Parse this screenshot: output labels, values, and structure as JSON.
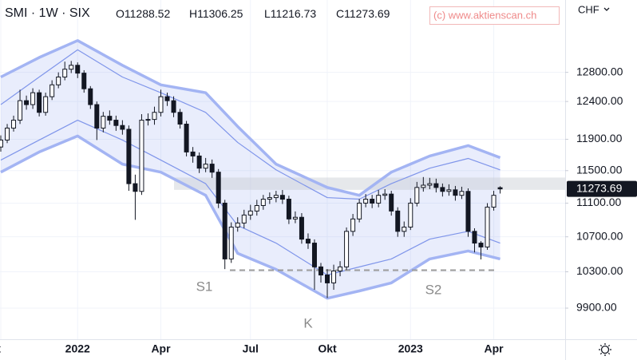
{
  "header": {
    "symbol": "SMI · 1W · SIX",
    "ohlc": [
      "O11288.52",
      "H11306.25",
      "L11216.73",
      "C11273.69"
    ],
    "watermark": "(c) www.aktienscan.ch",
    "currency": "CHF"
  },
  "chart_data": {
    "type": "candlestick",
    "log_scale": true,
    "grid": true,
    "up_color": "#ffffff",
    "down_color": "#131722",
    "outline_color": "#131722",
    "categories": [
      "t",
      null,
      null,
      null,
      null,
      null,
      null,
      null,
      null,
      null,
      null,
      null,
      "2022",
      null,
      null,
      null,
      null,
      null,
      null,
      null,
      null,
      null,
      null,
      null,
      null,
      "Apr",
      null,
      null,
      null,
      null,
      null,
      null,
      null,
      null,
      null,
      null,
      null,
      null,
      null,
      "Jul",
      null,
      null,
      null,
      null,
      null,
      null,
      null,
      null,
      null,
      null,
      null,
      "Okt",
      null,
      null,
      null,
      null,
      null,
      null,
      null,
      null,
      null,
      null,
      null,
      null,
      "2023",
      null,
      null,
      null,
      null,
      null,
      null,
      null,
      null,
      null,
      null,
      null,
      null,
      "Apr",
      null
    ],
    "open": [
      11800,
      11890,
      12046,
      12150,
      12411,
      12358,
      12519,
      12254,
      12465,
      12627,
      12735,
      12844,
      12899,
      12789,
      12573,
      12358,
      12046,
      12202,
      12150,
      12080,
      12030,
      11338,
      11243,
      12150,
      12160,
      12254,
      12465,
      12411,
      12254,
      12098,
      11736,
      11685,
      11531,
      11582,
      11481,
      11100,
      10445,
      10814,
      10862,
      10957,
      11005,
      11071,
      11148,
      11167,
      11195,
      11148,
      10910,
      10930,
      10673,
      10627,
      10355,
      10264,
      10176,
      10309,
      10355,
      10764,
      10910,
      11100,
      11148,
      11100,
      11195,
      11210,
      11005,
      10764,
      10814,
      11100,
      11291,
      11319,
      11338,
      11291,
      11243,
      11262,
      11195,
      11243,
      10764,
      10627,
      10582,
      11052,
      11288.52
    ],
    "high": [
      11950,
      12100,
      12210,
      12560,
      12480,
      12580,
      12560,
      12520,
      12690,
      12800,
      12950,
      12960,
      12940,
      12830,
      12610,
      12400,
      12260,
      12280,
      12210,
      12150,
      12080,
      11450,
      12230,
      12240,
      12330,
      12560,
      12520,
      12470,
      12300,
      12140,
      11800,
      11730,
      11660,
      11640,
      11520,
      11140,
      10870,
      10930,
      11020,
      11080,
      11140,
      11200,
      11230,
      11250,
      11260,
      11190,
      11000,
      10980,
      10740,
      10670,
      10400,
      10330,
      10380,
      10420,
      10810,
      10970,
      11150,
      11210,
      11200,
      11260,
      11270,
      11250,
      11050,
      10880,
      11160,
      11360,
      11420,
      11410,
      11400,
      11340,
      11330,
      11310,
      11300,
      11280,
      10800,
      10650,
      11100,
      11250,
      11306.25
    ],
    "low": [
      11740,
      11850,
      12000,
      12100,
      12290,
      12300,
      12200,
      12210,
      12420,
      12580,
      12690,
      12790,
      12720,
      12520,
      12300,
      11890,
      11990,
      12090,
      12010,
      11960,
      11250,
      10900,
      11200,
      12080,
      12090,
      12200,
      12340,
      12190,
      12040,
      11680,
      11600,
      11470,
      11480,
      11410,
      11040,
      10330,
      10400,
      10760,
      10800,
      10900,
      10950,
      11020,
      11090,
      11110,
      11090,
      10850,
      10860,
      10620,
      10560,
      10100,
      10180,
      10010,
      10100,
      10250,
      10320,
      10710,
      10870,
      11050,
      11040,
      11050,
      11140,
      10950,
      10700,
      10700,
      10780,
      11060,
      11240,
      11270,
      11230,
      11180,
      11190,
      11130,
      11150,
      10700,
      10520,
      10440,
      10550,
      11010,
      11216.73
    ],
    "close": [
      11890,
      12046,
      12150,
      12411,
      12358,
      12519,
      12254,
      12465,
      12627,
      12735,
      12844,
      12899,
      12789,
      12573,
      12358,
      12046,
      12202,
      12150,
      12080,
      12030,
      11338,
      11243,
      12150,
      12160,
      12254,
      12465,
      12411,
      12254,
      12098,
      11736,
      11685,
      11531,
      11582,
      11481,
      11100,
      10445,
      10814,
      10862,
      10957,
      11005,
      11071,
      11148,
      11167,
      11195,
      11148,
      10910,
      10930,
      10673,
      10627,
      10355,
      10264,
      10176,
      10309,
      10355,
      10764,
      10910,
      11100,
      11148,
      11100,
      11195,
      11210,
      11005,
      10764,
      10814,
      11100,
      11291,
      11319,
      11338,
      11291,
      11243,
      11262,
      11195,
      11243,
      10764,
      10627,
      10582,
      11052,
      11195,
      11273.69
    ],
    "bands": [
      {
        "color": "#a3b4f3",
        "width": 3.5,
        "x": [
          0,
          6,
          12,
          19,
          25,
          32,
          37,
          43,
          51,
          56,
          61,
          67,
          73,
          78
        ],
        "values": [
          12735,
          13009,
          13251,
          12899,
          12627,
          12519,
          12067,
          11582,
          11291,
          11195,
          11481,
          11685,
          11818,
          11664
        ]
      },
      {
        "color": "#7f95ea",
        "width": 1.2,
        "x": [
          0,
          6,
          12,
          19,
          25,
          32,
          37,
          43,
          51,
          56,
          61,
          67,
          73,
          78
        ],
        "values": [
          12358,
          12735,
          13119,
          12735,
          12519,
          12254,
          11859,
          11510,
          11167,
          11148,
          11338,
          11531,
          11654,
          11510
        ]
      },
      {
        "color": "#7f95ea",
        "width": 1.2,
        "x": [
          0,
          6,
          12,
          19,
          25,
          32,
          37,
          43,
          51,
          56,
          61,
          67,
          73,
          78
        ],
        "values": [
          11633,
          11890,
          12150,
          11890,
          11633,
          11338,
          10833,
          10627,
          10264,
          10355,
          10445,
          10673,
          10764,
          10627
        ]
      },
      {
        "color": "#a3b4f3",
        "width": 3.5,
        "x": [
          0,
          6,
          12,
          19,
          25,
          32,
          37,
          43,
          51,
          56,
          61,
          67,
          73,
          78
        ],
        "values": [
          11481,
          11736,
          11942,
          11582,
          11481,
          11195,
          10509,
          10327,
          10007,
          10087,
          10176,
          10445,
          10536,
          10445
        ]
      }
    ],
    "band_fill": "rgba(120,145,235,0.16)",
    "support": 10318,
    "resistance_zone": [
      11262,
      11414
    ],
    "annotations": [
      "S1",
      "K",
      "S2"
    ],
    "ylim": [
      9570,
      13850
    ],
    "yticks": [
      {
        "value": 12800,
        "label": "12800.00"
      },
      {
        "value": 12400,
        "label": "12400.00"
      },
      {
        "value": 11900,
        "label": "11900.00"
      },
      {
        "value": 11500,
        "label": "11500.00"
      },
      {
        "value": 11100,
        "label": "11100.00"
      },
      {
        "value": 10700,
        "label": "10700.00"
      },
      {
        "value": 10300,
        "label": "10300.00"
      },
      {
        "value": 9900,
        "label": "9900.00"
      }
    ]
  }
}
